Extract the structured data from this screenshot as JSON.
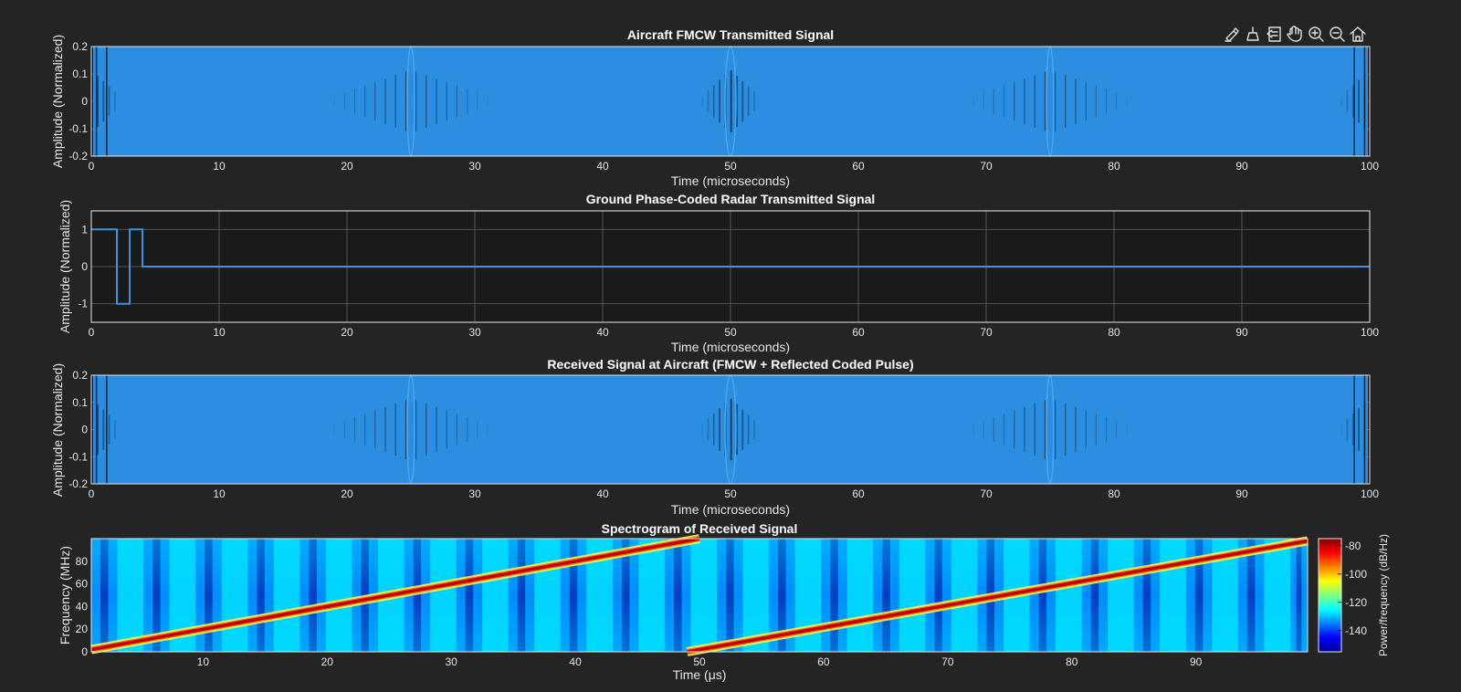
{
  "toolbar": {
    "items": [
      {
        "name": "brush",
        "icon": "brush-icon"
      },
      {
        "name": "data-tips",
        "icon": "datatip-icon"
      },
      {
        "name": "restore-view",
        "icon": "restore-icon"
      },
      {
        "name": "pan",
        "icon": "pan-hand-icon"
      },
      {
        "name": "zoom-in",
        "icon": "zoom-in-icon"
      },
      {
        "name": "zoom-out",
        "icon": "zoom-out-icon"
      },
      {
        "name": "home",
        "icon": "home-icon"
      }
    ]
  },
  "chart_data": [
    {
      "type": "line",
      "title": "Aircraft FMCW Transmitted Signal",
      "xlabel": "Time (microseconds)",
      "ylabel": "Amplitude (Normalized)",
      "xlim": [
        0,
        100
      ],
      "ylim": [
        -0.2,
        0.2
      ],
      "xticks": [
        0,
        10,
        20,
        30,
        40,
        50,
        60,
        70,
        80,
        90,
        100
      ],
      "yticks": [
        -0.2,
        -0.1,
        0,
        0.1,
        0.2
      ],
      "ytick_labels": [
        "-0.2",
        "-0.1",
        "0",
        "0.1",
        "0.2"
      ],
      "grid": true,
      "color": "#2b8ee0",
      "series": [
        {
          "signal": "fmcw_chirp",
          "amplitude": 0.2,
          "chirp_period": 50,
          "bandwidth_mhz": 100,
          "values_note_x": [
            0,
            100
          ]
        }
      ]
    },
    {
      "type": "line",
      "title": "Ground Phase-Coded Radar Transmitted Signal",
      "xlabel": "Time (microseconds)",
      "ylabel": "Amplitude (Normalized)",
      "xlim": [
        0,
        100
      ],
      "ylim": [
        -1.5,
        1.5
      ],
      "xticks": [
        0,
        10,
        20,
        30,
        40,
        50,
        60,
        70,
        80,
        90,
        100
      ],
      "yticks": [
        -1,
        0,
        1
      ],
      "ytick_labels": [
        "-1",
        "0",
        "1"
      ],
      "grid": true,
      "color": "#3a93e0",
      "series": [
        {
          "x": [
            0,
            2,
            2,
            3,
            3,
            4,
            4,
            100
          ],
          "y": [
            1,
            1,
            -1,
            -1,
            1,
            1,
            0,
            0
          ]
        }
      ]
    },
    {
      "type": "line",
      "title": "Received Signal at Aircraft (FMCW + Reflected Coded Pulse)",
      "xlabel": "Time (microseconds)",
      "ylabel": "Amplitude (Normalized)",
      "xlim": [
        0,
        100
      ],
      "ylim": [
        -0.2,
        0.2
      ],
      "xticks": [
        0,
        10,
        20,
        30,
        40,
        50,
        60,
        70,
        80,
        90,
        100
      ],
      "yticks": [
        -0.2,
        -0.1,
        0,
        0.1,
        0.2
      ],
      "ytick_labels": [
        "-0.2",
        "-0.1",
        "0",
        "0.1",
        "0.2"
      ],
      "grid": true,
      "color": "#2b8ee0",
      "series": [
        {
          "signal": "fmcw_chirp",
          "amplitude": 0.2,
          "chirp_period": 50,
          "bandwidth_mhz": 100
        }
      ]
    },
    {
      "type": "heatmap",
      "title": "Spectrogram of Received Signal",
      "xlabel": "Time (μs)",
      "ylabel": "Frequency (MHz)",
      "xlim": [
        1,
        99
      ],
      "ylim": [
        0,
        100
      ],
      "xticks": [
        10,
        20,
        30,
        40,
        50,
        60,
        70,
        80,
        90
      ],
      "yticks": [
        0,
        20,
        40,
        60,
        80
      ],
      "colorbar": {
        "label": "Power/frequency (dB/Hz)",
        "ticks": [
          -80,
          -100,
          -120,
          -140
        ],
        "tick_labels": [
          "-80",
          "-100",
          "-120",
          "-140"
        ],
        "range": [
          -155,
          -75
        ],
        "colormap": "jet"
      },
      "ridges": [
        {
          "x": [
            1,
            50
          ],
          "y": [
            2,
            100
          ]
        },
        {
          "x": [
            49,
            99
          ],
          "y": [
            0,
            98
          ]
        }
      ]
    }
  ]
}
